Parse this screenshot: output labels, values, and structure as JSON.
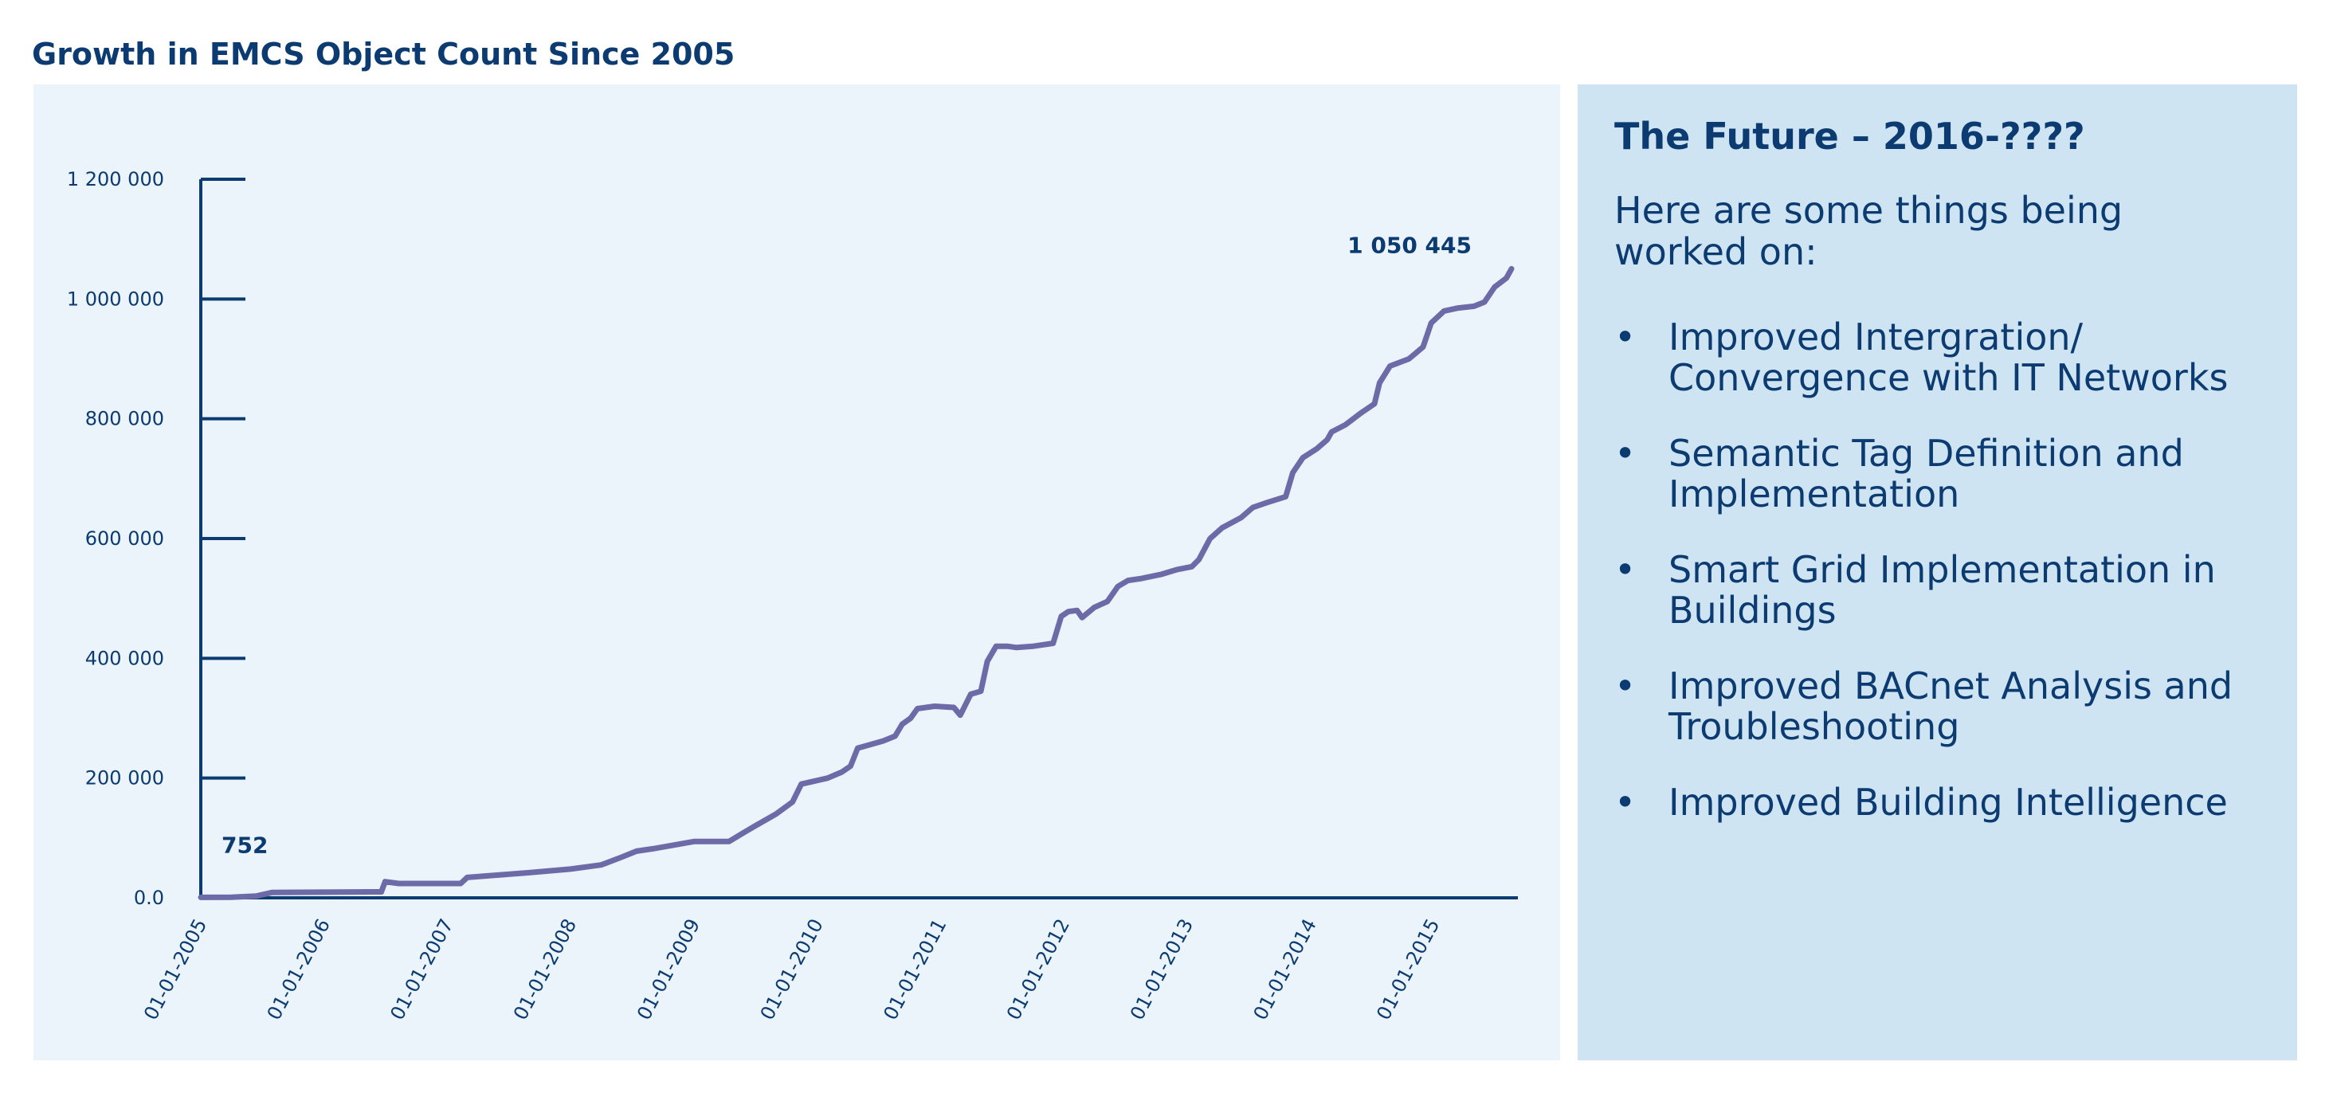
{
  "page": {
    "title": "Growth in EMCS Object Count Since 2005"
  },
  "info_panel": {
    "heading": "The Future – 2016-????",
    "intro": "Here are some things being worked on:",
    "items": [
      "Improved Intergration/ Convergence with IT Networks",
      "Semantic Tag Definition and Implementation",
      "Smart Grid Implementation in Buildings",
      "Improved BACnet Analysis and Troubleshooting",
      "Improved Building Intelligence"
    ]
  },
  "colors": {
    "title_text": "#0b3b70",
    "chart_background": "#ebf3fb",
    "info_background": "#cfe4f3",
    "axis": "#0b3b70",
    "series_line": "#6d6aa8"
  },
  "chart_data": {
    "type": "line",
    "title": "Growth in EMCS Object Count Since 2005",
    "xlabel": "",
    "ylabel": "",
    "grid": false,
    "legend": "none",
    "xlim": [
      "2005-01-01",
      "2015-08-20"
    ],
    "ylim": [
      0,
      1200000
    ],
    "y_ticks": [
      0,
      200000,
      400000,
      600000,
      800000,
      1000000,
      1200000
    ],
    "y_tick_labels": [
      "0.0",
      "200 000",
      "400 000",
      "600 000",
      "800 000",
      "1 000 000",
      "1 200 000"
    ],
    "x_ticks": [
      "2005-01-01",
      "2006-01-01",
      "2007-01-01",
      "2008-01-01",
      "2009-01-01",
      "2010-01-01",
      "2011-01-01",
      "2012-01-01",
      "2013-01-01",
      "2014-01-01",
      "2015-01-01"
    ],
    "x_tick_labels": [
      "01-01-2005",
      "01-01-2006",
      "01-01-2007",
      "01-01-2008",
      "01-01-2009",
      "01-01-2010",
      "01-01-2011",
      "01-01-2012",
      "01-01-2013",
      "01-01-2014",
      "01-01-2015"
    ],
    "annotations": [
      {
        "text": "752",
        "x": "2005-01-01",
        "y": 752
      },
      {
        "text": "1 050 445",
        "x": "2015-08-20",
        "y": 1050445
      }
    ],
    "series": [
      {
        "color": "#6d6aa8",
        "points": [
          [
            "2005-01-01",
            752
          ],
          [
            "2005-04-01",
            1000
          ],
          [
            "2005-06-15",
            3000
          ],
          [
            "2005-08-01",
            9000
          ],
          [
            "2006-06-01",
            10000
          ],
          [
            "2006-06-20",
            10000
          ],
          [
            "2006-07-01",
            27000
          ],
          [
            "2006-08-10",
            24000
          ],
          [
            "2007-02-10",
            24000
          ],
          [
            "2007-03-01",
            34000
          ],
          [
            "2007-06-01",
            38000
          ],
          [
            "2007-09-01",
            42000
          ],
          [
            "2008-01-01",
            48000
          ],
          [
            "2008-04-01",
            55000
          ],
          [
            "2008-06-01",
            68000
          ],
          [
            "2008-07-15",
            78000
          ],
          [
            "2008-09-01",
            82000
          ],
          [
            "2009-01-01",
            94000
          ],
          [
            "2009-04-15",
            94000
          ],
          [
            "2009-06-01",
            110000
          ],
          [
            "2009-07-01",
            120000
          ],
          [
            "2009-09-01",
            140000
          ],
          [
            "2009-10-20",
            160000
          ],
          [
            "2009-11-15",
            190000
          ],
          [
            "2010-02-01",
            200000
          ],
          [
            "2010-03-15",
            210000
          ],
          [
            "2010-04-10",
            220000
          ],
          [
            "2010-05-01",
            250000
          ],
          [
            "2010-07-15",
            262000
          ],
          [
            "2010-08-20",
            270000
          ],
          [
            "2010-09-10",
            290000
          ],
          [
            "2010-10-05",
            300000
          ],
          [
            "2010-10-25",
            316000
          ],
          [
            "2010-12-15",
            320000
          ],
          [
            "2011-02-10",
            318000
          ],
          [
            "2011-03-01",
            305000
          ],
          [
            "2011-04-01",
            340000
          ],
          [
            "2011-05-01",
            345000
          ],
          [
            "2011-05-20",
            395000
          ],
          [
            "2011-06-15",
            420000
          ],
          [
            "2011-07-20",
            420000
          ],
          [
            "2011-08-15",
            418000
          ],
          [
            "2011-10-01",
            420000
          ],
          [
            "2011-12-01",
            425000
          ],
          [
            "2011-12-25",
            470000
          ],
          [
            "2012-01-15",
            478000
          ],
          [
            "2012-02-10",
            480000
          ],
          [
            "2012-02-25",
            468000
          ],
          [
            "2012-04-01",
            485000
          ],
          [
            "2012-05-10",
            495000
          ],
          [
            "2012-06-10",
            520000
          ],
          [
            "2012-07-10",
            530000
          ],
          [
            "2012-08-15",
            533000
          ],
          [
            "2012-10-15",
            540000
          ],
          [
            "2012-12-01",
            548000
          ],
          [
            "2013-01-15",
            553000
          ],
          [
            "2013-02-05",
            565000
          ],
          [
            "2013-03-10",
            600000
          ],
          [
            "2013-04-15",
            618000
          ],
          [
            "2013-06-10",
            635000
          ],
          [
            "2013-07-15",
            652000
          ],
          [
            "2013-08-25",
            660000
          ],
          [
            "2013-10-20",
            670000
          ],
          [
            "2013-11-10",
            710000
          ],
          [
            "2013-12-10",
            735000
          ],
          [
            "2014-01-20",
            750000
          ],
          [
            "2014-02-20",
            765000
          ],
          [
            "2014-03-05",
            778000
          ],
          [
            "2014-04-15",
            790000
          ],
          [
            "2014-06-01",
            810000
          ],
          [
            "2014-07-10",
            825000
          ],
          [
            "2014-07-25",
            860000
          ],
          [
            "2014-08-25",
            888000
          ],
          [
            "2014-10-20",
            900000
          ],
          [
            "2014-12-01",
            920000
          ],
          [
            "2014-12-25",
            960000
          ],
          [
            "2015-02-01",
            980000
          ],
          [
            "2015-03-15",
            985000
          ],
          [
            "2015-05-01",
            988000
          ],
          [
            "2015-06-01",
            995000
          ],
          [
            "2015-07-01",
            1020000
          ],
          [
            "2015-08-05",
            1035000
          ],
          [
            "2015-08-20",
            1050445
          ]
        ]
      }
    ]
  }
}
